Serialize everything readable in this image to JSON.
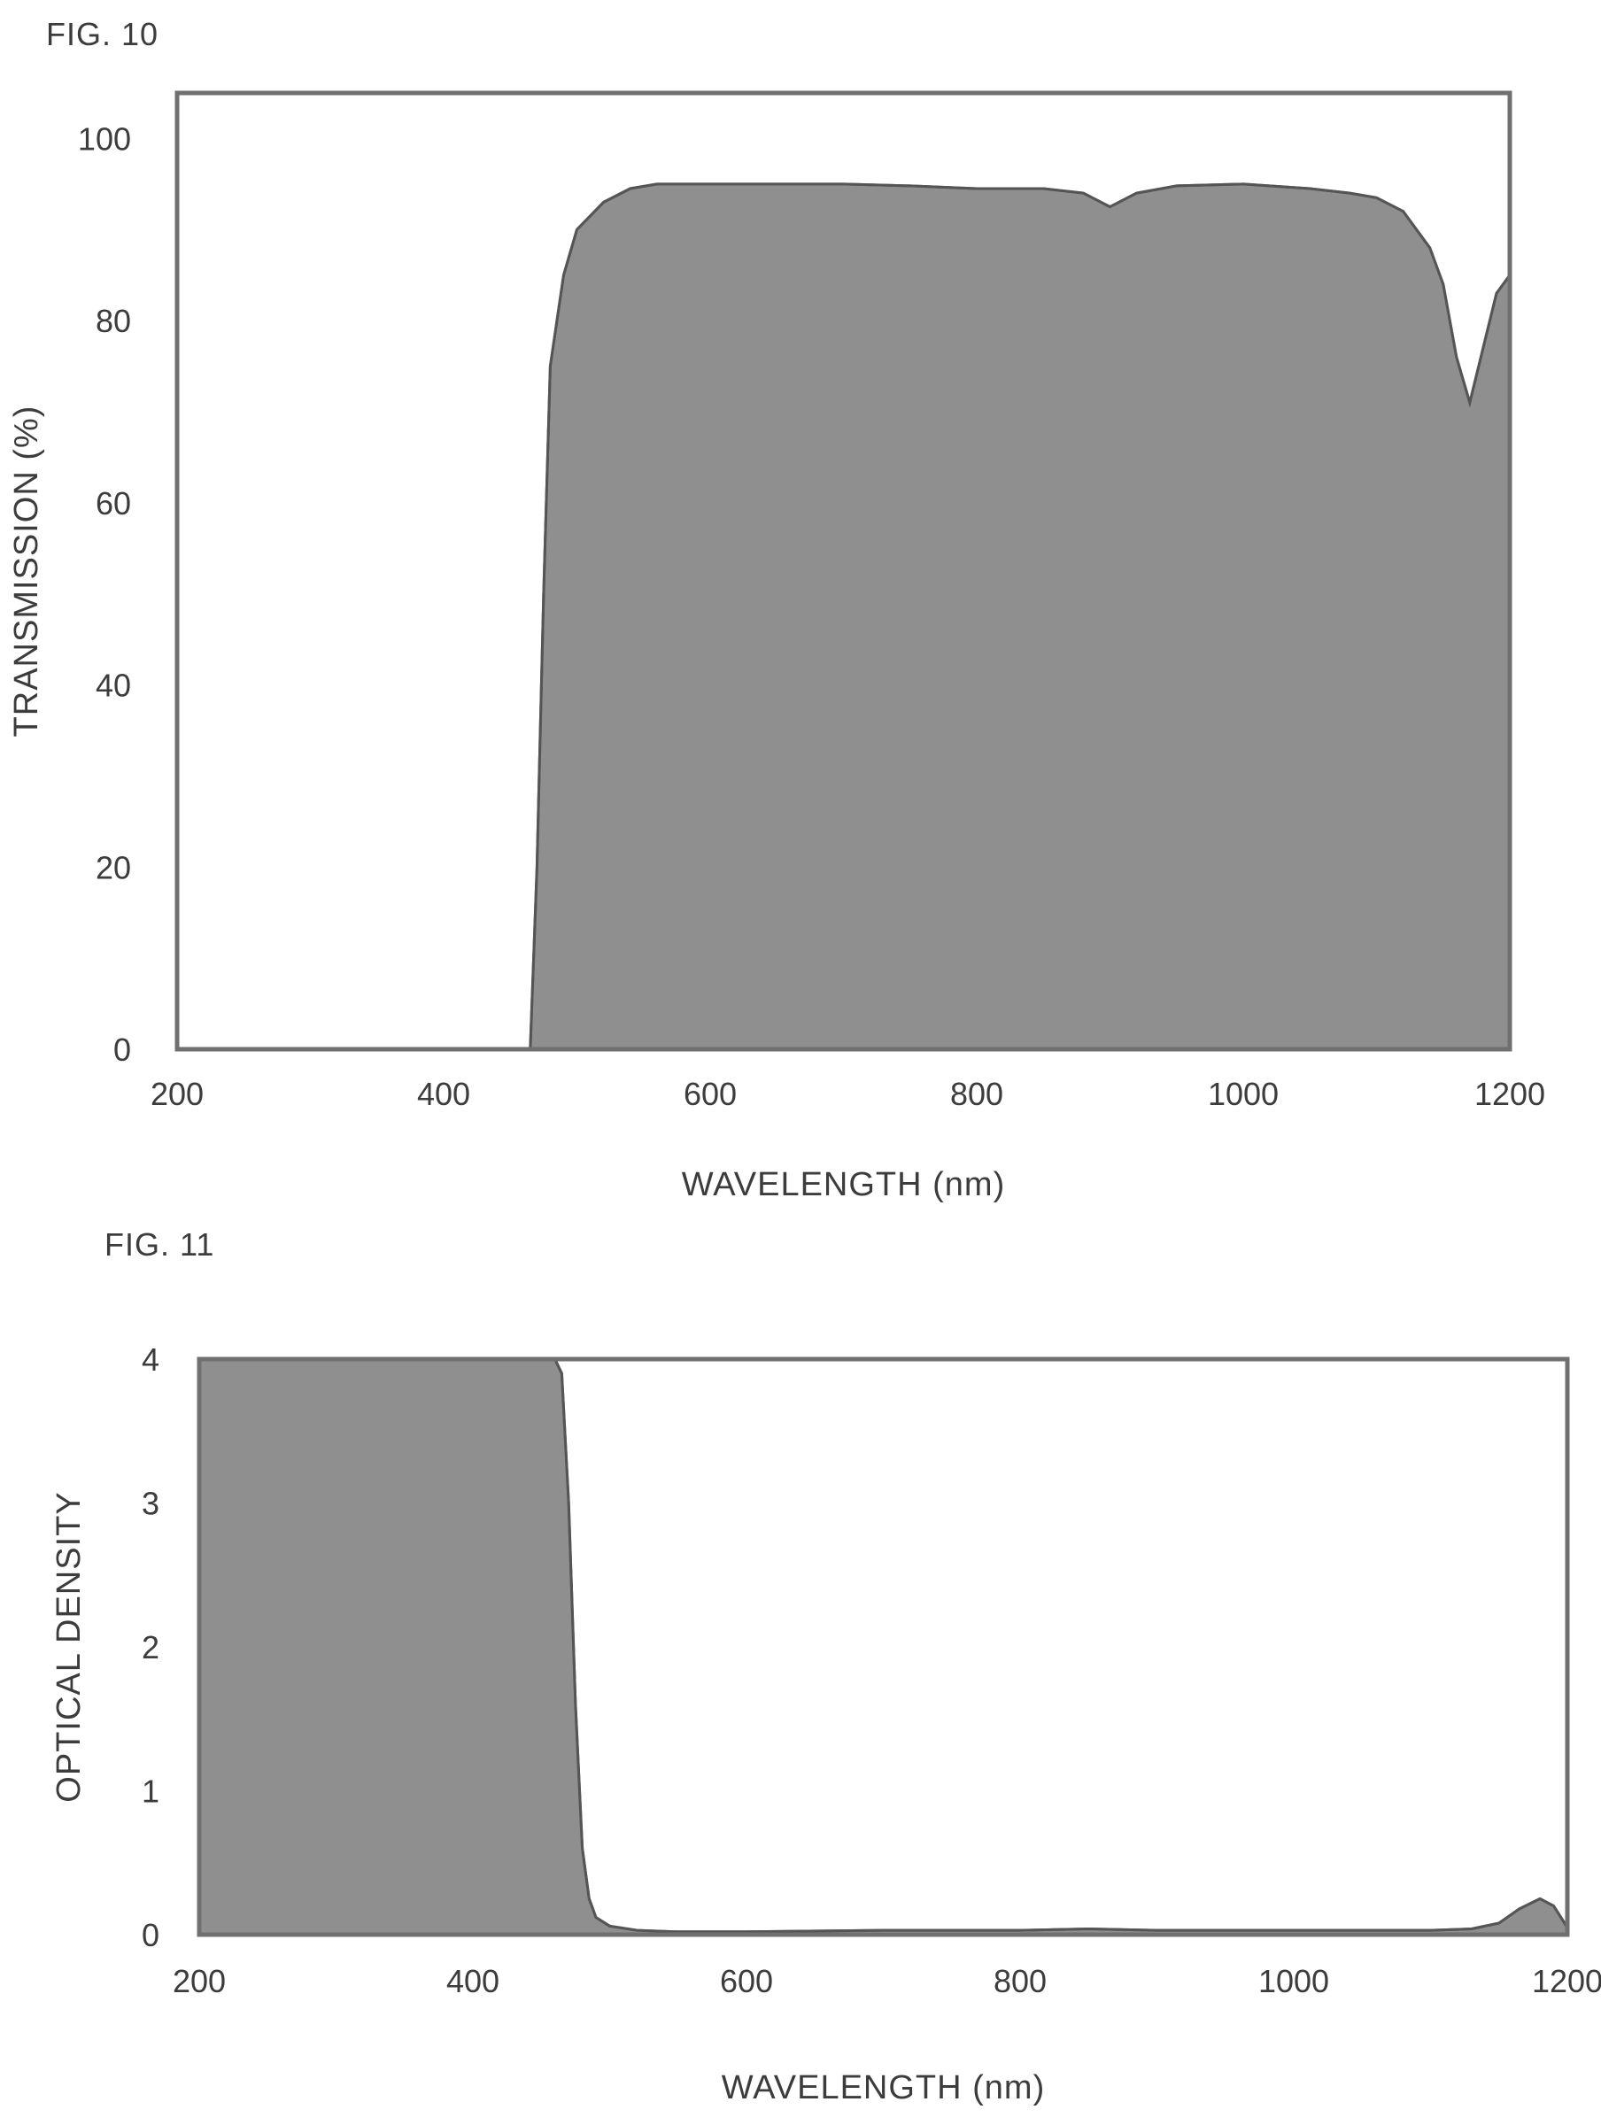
{
  "figures": {
    "fig10_label": "FIG. 10",
    "fig11_label": "FIG. 11"
  },
  "colors": {
    "fill": "#8f8f8f",
    "frame": "#707070",
    "text": "#3c3c3c"
  },
  "chart_data": [
    {
      "type": "area",
      "xlabel": "WAVELENGTH (nm)",
      "ylabel": "TRANSMISSION (%)",
      "xlim": [
        200,
        1200
      ],
      "ylim": [
        0,
        105
      ],
      "xticks": [
        200,
        400,
        600,
        800,
        1000,
        1200
      ],
      "yticks": [
        0,
        20,
        40,
        60,
        80,
        100
      ],
      "grid": false,
      "series": [
        {
          "x": [
            200,
            465,
            470,
            475,
            480,
            490,
            500,
            520,
            540,
            560,
            580,
            600,
            650,
            700,
            750,
            800,
            850,
            880,
            900,
            920,
            950,
            1000,
            1050,
            1080,
            1100,
            1120,
            1140,
            1150,
            1160,
            1170,
            1180,
            1190,
            1200
          ],
          "y": [
            0,
            0,
            20,
            50,
            75,
            85,
            90,
            93,
            94.5,
            95,
            95,
            95,
            95,
            95,
            94.8,
            94.5,
            94.5,
            94,
            92.5,
            94,
            94.8,
            95,
            94.5,
            94,
            93.5,
            92,
            88,
            84,
            76,
            71,
            77,
            83,
            85
          ]
        }
      ]
    },
    {
      "type": "area",
      "xlabel": "WAVELENGTH (nm)",
      "ylabel": "OPTICAL DENSITY",
      "xlim": [
        200,
        1200
      ],
      "ylim": [
        0,
        4
      ],
      "xticks": [
        200,
        400,
        600,
        800,
        1000,
        1200
      ],
      "yticks": [
        0,
        1,
        2,
        3,
        4
      ],
      "grid": false,
      "series": [
        {
          "x": [
            200,
            460,
            465,
            470,
            475,
            480,
            485,
            490,
            500,
            520,
            550,
            600,
            700,
            800,
            850,
            900,
            1000,
            1100,
            1130,
            1150,
            1165,
            1180,
            1190,
            1200
          ],
          "y": [
            4,
            4,
            3.9,
            3.0,
            1.6,
            0.6,
            0.25,
            0.12,
            0.06,
            0.03,
            0.02,
            0.02,
            0.03,
            0.03,
            0.04,
            0.03,
            0.03,
            0.03,
            0.04,
            0.08,
            0.18,
            0.25,
            0.2,
            0.05
          ]
        }
      ]
    }
  ]
}
